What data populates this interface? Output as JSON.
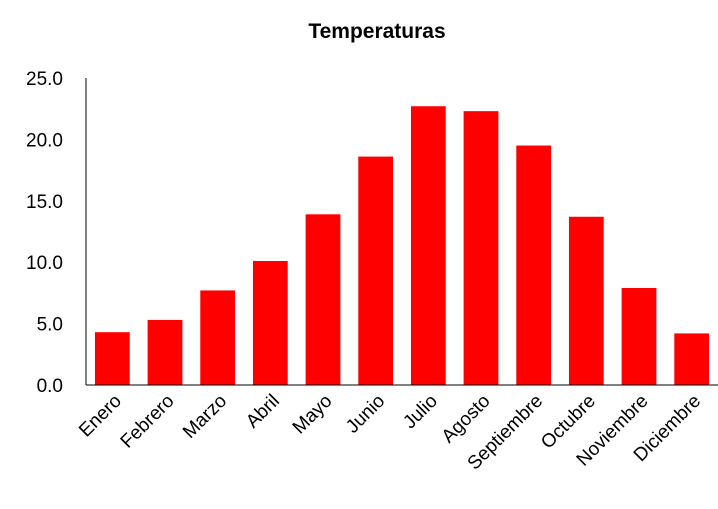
{
  "chart_data": {
    "type": "bar",
    "title": "Temperaturas",
    "xlabel": "",
    "ylabel": "",
    "categories": [
      "Enero",
      "Febrero",
      "Marzo",
      "Abril",
      "Mayo",
      "Junio",
      "Julio",
      "Agosto",
      "Septiembre",
      "Octubre",
      "Noviembre",
      "Diciembre"
    ],
    "values": [
      4.3,
      5.3,
      7.7,
      10.1,
      13.9,
      18.6,
      22.7,
      22.3,
      19.5,
      13.7,
      7.9,
      4.2
    ],
    "ylim": [
      0,
      25
    ],
    "yticks": [
      "0.0",
      "5.0",
      "10.0",
      "15.0",
      "20.0",
      "25.0"
    ],
    "grid": false,
    "legend": "none",
    "colors": {
      "bar": "#ff0000",
      "axis": "#000000",
      "text": "#000000"
    }
  }
}
